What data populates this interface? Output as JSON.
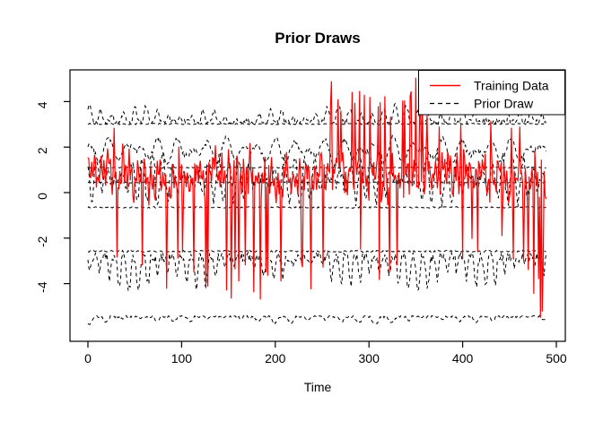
{
  "figure": {
    "title": "Prior Draws",
    "x_label": "Time",
    "background": "#ffffff",
    "frame_color": "#000000"
  },
  "legend": {
    "position": "top-right",
    "entries": [
      {
        "label": "Training Data",
        "color": "#ff0000",
        "style": "solid"
      },
      {
        "label": "Prior Draw",
        "color": "#000000",
        "style": "dashed"
      }
    ]
  },
  "chart_data": {
    "type": "line",
    "title": "Prior Draws",
    "xlabel": "Time",
    "ylabel": "",
    "xlim": [
      0,
      489
    ],
    "ylim": [
      -6.5,
      5.4
    ],
    "x_ticks": [
      0,
      100,
      200,
      300,
      400,
      500
    ],
    "y_ticks": [
      -4,
      -2,
      0,
      2,
      4
    ],
    "grid": false,
    "legend_position": "top-right",
    "n_points": 490,
    "prior_style": {
      "color": "#000000",
      "dash": "dashed",
      "width": 1
    },
    "prior_draws": [
      {
        "name": "prior-draw-1",
        "kind": "flat",
        "level": 3.02,
        "noise": 0.03,
        "seed": 101
      },
      {
        "name": "prior-draw-2",
        "kind": "bumps",
        "level": 3.12,
        "amp": 0.7,
        "dir": 1,
        "f1": 0.52,
        "f2": 0.093,
        "p1": 0.7,
        "p2": 2.1,
        "noise": 0.1,
        "seed": 102
      },
      {
        "name": "prior-draw-3",
        "kind": "osc",
        "level": 1.85,
        "amp": 0.58,
        "f1": 0.3,
        "f2": 0.052,
        "p1": 1.2,
        "p2": 0.4,
        "noise": 0.12,
        "seed": 103
      },
      {
        "name": "prior-draw-4",
        "kind": "flat",
        "level": 1.1,
        "noise": 0.025,
        "seed": 104
      },
      {
        "name": "prior-draw-5",
        "kind": "osc",
        "level": 0.6,
        "amp": 1.05,
        "f1": 0.58,
        "f2": 0.041,
        "p1": 2.4,
        "p2": 1.9,
        "noise": 0.3,
        "seed": 105
      },
      {
        "name": "prior-draw-6",
        "kind": "flat",
        "level": 0.45,
        "noise": 0.025,
        "seed": 106
      },
      {
        "name": "prior-draw-7",
        "kind": "flat",
        "level": -0.65,
        "noise": 0.03,
        "seed": 107
      },
      {
        "name": "prior-draw-8",
        "kind": "flat",
        "level": -2.58,
        "noise": 0.04,
        "seed": 108
      },
      {
        "name": "prior-draw-9",
        "kind": "bumps",
        "level": -2.85,
        "amp": 1.35,
        "dir": -1,
        "f1": 0.61,
        "f2": 0.083,
        "p1": 0.2,
        "p2": 4.0,
        "noise": 0.22,
        "seed": 109
      },
      {
        "name": "prior-draw-10",
        "kind": "bumps",
        "level": -5.45,
        "amp": 0.3,
        "dir": -1,
        "f1": 0.35,
        "f2": 0.06,
        "p1": 1.0,
        "p2": 2.0,
        "noise": 0.05,
        "seed": 110
      }
    ],
    "training": {
      "name": "training-data",
      "color": "#ff0000",
      "width": 1.2,
      "seed": 7,
      "mean": 0.75,
      "wave": [
        [
          1.9,
          0.5,
          0.0
        ],
        [
          0.83,
          0.38,
          2.0
        ],
        [
          0.33,
          0.3,
          1.1
        ],
        [
          0.051,
          0.22,
          0.5
        ]
      ],
      "noise": 0.5,
      "neg_spike_p": 0.032,
      "burst": {
        "from": 256,
        "to": 364,
        "p": 0.14,
        "lo": 2.6,
        "hi": 4.9
      },
      "end_dip": {
        "from": 465,
        "to": 489,
        "p": 0.28,
        "lo": -2.2,
        "hi": -5.5
      },
      "anchors": [
        [
          28,
          2.85
        ],
        [
          58,
          -3.2
        ],
        [
          96,
          -2.9
        ],
        [
          113,
          -3.5
        ],
        [
          126,
          -4.2
        ],
        [
          148,
          -4.3
        ],
        [
          153,
          -4.65
        ],
        [
          161,
          -3.9
        ],
        [
          168,
          -3.2
        ],
        [
          184,
          -4.7
        ],
        [
          190,
          -3.5
        ],
        [
          206,
          -3.9
        ],
        [
          228,
          -3.05
        ],
        [
          238,
          -4.25
        ],
        [
          251,
          -3.3
        ],
        [
          259,
          3.9
        ],
        [
          270,
          3.6
        ],
        [
          285,
          3.95
        ],
        [
          295,
          4.3
        ],
        [
          301,
          4.2
        ],
        [
          310,
          3.8
        ],
        [
          322,
          -3.5
        ],
        [
          330,
          -3.2
        ],
        [
          338,
          4.05
        ],
        [
          345,
          4.45
        ],
        [
          350,
          5.05
        ],
        [
          355,
          4.1
        ],
        [
          362,
          3.4
        ],
        [
          375,
          2.9
        ],
        [
          398,
          3.0
        ],
        [
          416,
          -2.6
        ],
        [
          430,
          3.15
        ],
        [
          452,
          2.85
        ],
        [
          461,
          2.9
        ],
        [
          470,
          -3.4
        ],
        [
          476,
          -4.45
        ],
        [
          481,
          -3.8
        ],
        [
          483,
          -5.5
        ],
        [
          486,
          -2.9
        ]
      ]
    }
  }
}
